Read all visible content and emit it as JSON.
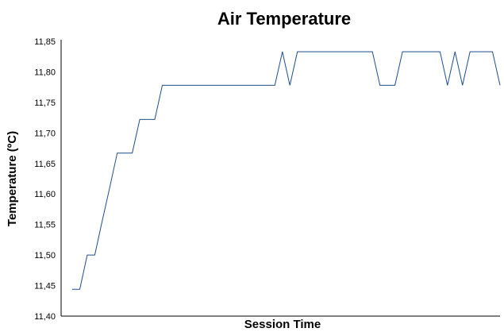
{
  "chart_data": {
    "type": "line",
    "title": "Air Temperature",
    "xlabel": "Session Time",
    "ylabel": "Temperature (ºC)",
    "ylim": [
      11.4,
      11.85
    ],
    "yticks": [
      "11,40",
      "11,45",
      "11,50",
      "11,55",
      "11,60",
      "11,65",
      "11,70",
      "11,75",
      "11,80",
      "11,85"
    ],
    "grid": false,
    "legend": "none",
    "line_color": "#1f4e8c",
    "series": [
      {
        "values": [
          11.444,
          11.444,
          11.5,
          11.5,
          11.556,
          11.611,
          11.667,
          11.667,
          11.667,
          11.722,
          11.722,
          11.722,
          11.778,
          11.778,
          11.778,
          11.778,
          11.778,
          11.778,
          11.778,
          11.778,
          11.778,
          11.778,
          11.778,
          11.778,
          11.778,
          11.778,
          11.778,
          11.778,
          11.833,
          11.778,
          11.833,
          11.833,
          11.833,
          11.833,
          11.833,
          11.833,
          11.833,
          11.833,
          11.833,
          11.833,
          11.833,
          11.778,
          11.778,
          11.778,
          11.833,
          11.833,
          11.833,
          11.833,
          11.833,
          11.833,
          11.778,
          11.833,
          11.778,
          11.833,
          11.833,
          11.833,
          11.833,
          11.778
        ]
      }
    ]
  }
}
